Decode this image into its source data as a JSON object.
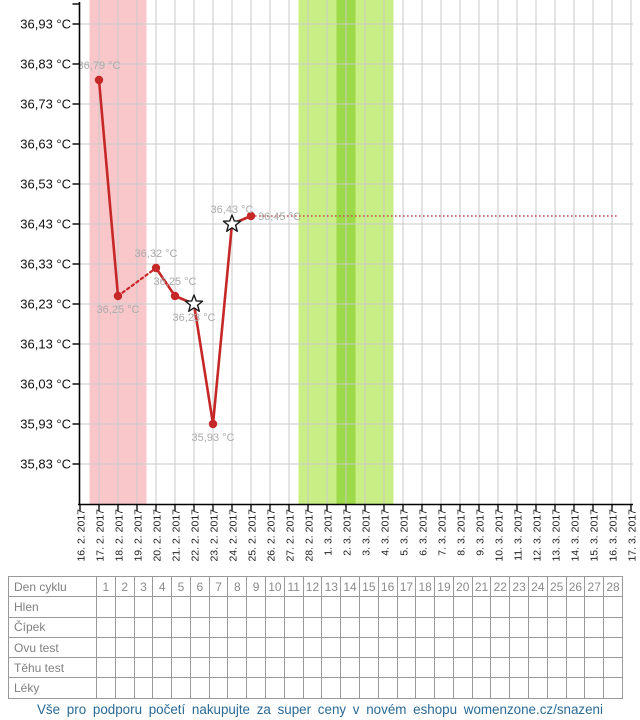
{
  "chart_data": {
    "type": "line",
    "title": "",
    "unit": "°C",
    "grid": true,
    "y_axis": {
      "max": 36.93,
      "step": 0.1,
      "tick_labels": [
        "36,93 °C",
        "36,83 °C",
        "36,73 °C",
        "36,63 °C",
        "36,53 °C",
        "36,43 °C",
        "36,33 °C",
        "36,23 °C",
        "36,13 °C",
        "36,03 °C",
        "35,93 °C",
        "35,83 °C"
      ]
    },
    "x_axis": {
      "dates": [
        "16. 2. 2017",
        "17. 2. 2017",
        "18. 2. 2017",
        "19. 2. 2017",
        "20. 2. 2017",
        "21. 2. 2017",
        "22. 2. 2017",
        "23. 2. 2017",
        "24. 2. 2017",
        "25. 2. 2017",
        "26. 2. 2017",
        "27. 2. 2017",
        "28. 2. 2017",
        "1. 3. 2017",
        "2. 3. 2017",
        "3. 3. 2017",
        "4. 3. 2017",
        "5. 3. 2017",
        "6. 3. 2017",
        "7. 3. 2017",
        "8. 3. 2017",
        "9. 3. 2017",
        "10. 3. 2017",
        "11. 3. 2017",
        "12. 3. 2017",
        "13. 3. 2017",
        "14. 3. 2017",
        "15. 3. 2017",
        "16. 3. 2017",
        "17. 3. 2017"
      ]
    },
    "series": [
      {
        "name": "basal-temperature",
        "points": [
          {
            "cycle_day": 1,
            "date": "17. 2. 2017",
            "temp": 36.79,
            "label": "36,79 °C",
            "marker": "dot",
            "label_pos": "above"
          },
          {
            "cycle_day": 2,
            "date": "18. 2. 2017",
            "temp": 36.25,
            "label": "36,25 °C",
            "marker": "dot",
            "label_pos": "below"
          },
          {
            "cycle_day": 4,
            "date": "20. 2. 2017",
            "temp": 36.32,
            "label": "36,32 °C",
            "marker": "dot",
            "label_pos": "above"
          },
          {
            "cycle_day": 5,
            "date": "21. 2. 2017",
            "temp": 36.25,
            "label": "36,25 °C",
            "marker": "dot",
            "label_pos": "above"
          },
          {
            "cycle_day": 6,
            "date": "22. 2. 2017",
            "temp": 36.23,
            "label": "36,23 °C",
            "marker": "star",
            "label_pos": "below"
          },
          {
            "cycle_day": 7,
            "date": "23. 2. 2017",
            "temp": 35.93,
            "label": "35,93 °C",
            "marker": "dot",
            "label_pos": "below"
          },
          {
            "cycle_day": 8,
            "date": "24. 2. 2017",
            "temp": 36.43,
            "label": "36,43 °C",
            "marker": "star",
            "label_pos": "above"
          },
          {
            "cycle_day": 9,
            "date": "25. 2. 2017",
            "temp": 36.45,
            "label": "36,45 °C",
            "marker": "dot",
            "label_pos": "right"
          }
        ]
      }
    ],
    "missing_days_dashed": [
      3
    ],
    "projection_line": {
      "temp": 36.45,
      "from_cycle_day": 9,
      "style": "dotted"
    },
    "bands": [
      {
        "name": "menstruation",
        "from_day": 1,
        "to_day": 3,
        "color": "#f9c6ca"
      },
      {
        "name": "fertile-window",
        "from_day": 12,
        "to_day": 16,
        "color": "#c9ee85"
      },
      {
        "name": "ovulation-day",
        "from_day": 14,
        "to_day": 14,
        "color": "#9cda49"
      }
    ],
    "colors": {
      "line": "#c62828",
      "point": "#c62828",
      "projection": "#bb5252",
      "value_label": "#ababab",
      "grid": "#c9c9c9",
      "axis": "#000000",
      "date_label": "#222222",
      "y_label": "#111111"
    }
  },
  "cycle_table": {
    "row_labels": [
      "Den cyklu",
      "Hlen",
      "Čípek",
      "Ovu test",
      "Těhu test",
      "Léky"
    ],
    "day_numbers": [
      "1",
      "2",
      "3",
      "4",
      "5",
      "6",
      "7",
      "8",
      "9",
      "10",
      "11",
      "12",
      "13",
      "14",
      "15",
      "16",
      "17",
      "18",
      "19",
      "20",
      "21",
      "22",
      "23",
      "24",
      "25",
      "26",
      "27",
      "28"
    ]
  },
  "footer": {
    "text": "Vše pro podporu početí nakupujte za super ceny v novém eshopu womenzone.cz/snazeni",
    "color": "#2a6a96"
  }
}
